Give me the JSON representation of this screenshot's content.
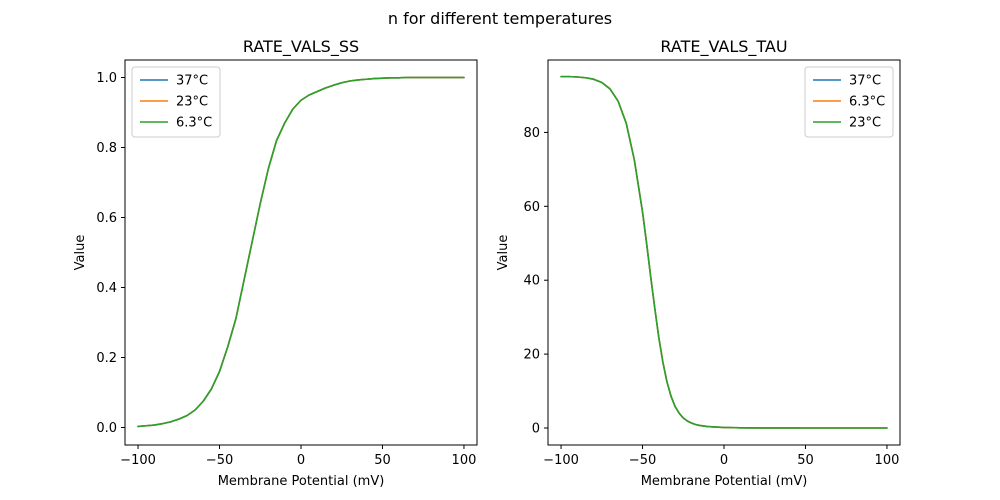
{
  "figure": {
    "suptitle": "n for different temperatures"
  },
  "chart_data": [
    {
      "type": "line",
      "title": "RATE_VALS_SS",
      "xlabel": "Membrane Potential (mV)",
      "ylabel": "Value",
      "xlim": [
        -108,
        108
      ],
      "ylim": [
        -0.05,
        1.05
      ],
      "xticks": [
        -100,
        -50,
        0,
        50,
        100
      ],
      "yticks": [
        0.0,
        0.2,
        0.4,
        0.6,
        0.8,
        1.0
      ],
      "ytick_labels": [
        "0.0",
        "0.2",
        "0.4",
        "0.6",
        "0.8",
        "1.0"
      ],
      "legend": "top-left",
      "x": [
        -100,
        -95,
        -90,
        -85,
        -80,
        -75,
        -70,
        -65,
        -60,
        -55,
        -50,
        -45,
        -40,
        -35,
        -30,
        -25,
        -20,
        -15,
        -10,
        -5,
        0,
        5,
        10,
        15,
        20,
        25,
        30,
        35,
        40,
        45,
        50,
        55,
        60,
        65,
        70,
        75,
        80,
        85,
        90,
        95,
        100
      ],
      "series": [
        {
          "name": "37°C",
          "color": "#1f77b4",
          "values": [
            0.003,
            0.005,
            0.007,
            0.011,
            0.016,
            0.024,
            0.034,
            0.05,
            0.075,
            0.11,
            0.16,
            0.23,
            0.31,
            0.42,
            0.53,
            0.64,
            0.74,
            0.82,
            0.87,
            0.91,
            0.935,
            0.95,
            0.96,
            0.97,
            0.978,
            0.985,
            0.99,
            0.993,
            0.995,
            0.997,
            0.998,
            0.999,
            0.999,
            1.0,
            1.0,
            1.0,
            1.0,
            1.0,
            1.0,
            1.0,
            1.0
          ]
        },
        {
          "name": "23°C",
          "color": "#ff7f0e",
          "values": [
            0.003,
            0.005,
            0.007,
            0.011,
            0.016,
            0.024,
            0.034,
            0.05,
            0.075,
            0.11,
            0.16,
            0.23,
            0.31,
            0.42,
            0.53,
            0.64,
            0.74,
            0.82,
            0.87,
            0.91,
            0.935,
            0.95,
            0.96,
            0.97,
            0.978,
            0.985,
            0.99,
            0.993,
            0.995,
            0.997,
            0.998,
            0.999,
            0.999,
            1.0,
            1.0,
            1.0,
            1.0,
            1.0,
            1.0,
            1.0,
            1.0
          ]
        },
        {
          "name": "6.3°C",
          "color": "#2ca02c",
          "values": [
            0.003,
            0.005,
            0.007,
            0.011,
            0.016,
            0.024,
            0.034,
            0.05,
            0.075,
            0.11,
            0.16,
            0.23,
            0.31,
            0.42,
            0.53,
            0.64,
            0.74,
            0.82,
            0.87,
            0.91,
            0.935,
            0.95,
            0.96,
            0.97,
            0.978,
            0.985,
            0.99,
            0.993,
            0.995,
            0.997,
            0.998,
            0.999,
            0.999,
            1.0,
            1.0,
            1.0,
            1.0,
            1.0,
            1.0,
            1.0,
            1.0
          ]
        }
      ]
    },
    {
      "type": "line",
      "title": "RATE_VALS_TAU",
      "xlabel": "Membrane Potential (mV)",
      "ylabel": "Value",
      "xlim": [
        -108,
        108
      ],
      "ylim": [
        -4.6,
        99.6
      ],
      "xticks": [
        -100,
        -50,
        0,
        50,
        100
      ],
      "yticks": [
        0,
        20,
        40,
        60,
        80
      ],
      "ytick_labels": [
        "0",
        "20",
        "40",
        "60",
        "80"
      ],
      "legend": "top-right",
      "x": [
        -100,
        -95,
        -90,
        -85,
        -80,
        -75,
        -70,
        -65,
        -60,
        -55,
        -50,
        -47.5,
        -45,
        -42.5,
        -40,
        -37.5,
        -35,
        -32.5,
        -30,
        -27.5,
        -25,
        -22.5,
        -20,
        -17.5,
        -15,
        -10,
        -5,
        0,
        5,
        10,
        20,
        30,
        40,
        50,
        60,
        70,
        80,
        90,
        100
      ],
      "series": [
        {
          "name": "37°C",
          "color": "#1f77b4",
          "values": [
            95.1,
            95.1,
            95.0,
            94.8,
            94.4,
            93.5,
            91.8,
            88.5,
            82.5,
            72.5,
            58.5,
            50.0,
            41.0,
            32.5,
            24.5,
            17.8,
            12.5,
            8.6,
            5.8,
            4.0,
            2.7,
            1.9,
            1.35,
            0.95,
            0.7,
            0.4,
            0.25,
            0.15,
            0.1,
            0.06,
            0.03,
            0.02,
            0.01,
            0.0,
            0.0,
            0.0,
            0.0,
            0.0,
            0.0
          ]
        },
        {
          "name": "6.3°C",
          "color": "#ff7f0e",
          "values": [
            95.1,
            95.1,
            95.0,
            94.8,
            94.4,
            93.5,
            91.8,
            88.5,
            82.5,
            72.5,
            58.5,
            50.0,
            41.0,
            32.5,
            24.5,
            17.8,
            12.5,
            8.6,
            5.8,
            4.0,
            2.7,
            1.9,
            1.35,
            0.95,
            0.7,
            0.4,
            0.25,
            0.15,
            0.1,
            0.06,
            0.03,
            0.02,
            0.01,
            0.0,
            0.0,
            0.0,
            0.0,
            0.0,
            0.0
          ]
        },
        {
          "name": "23°C",
          "color": "#2ca02c",
          "values": [
            95.1,
            95.1,
            95.0,
            94.8,
            94.4,
            93.5,
            91.8,
            88.5,
            82.5,
            72.5,
            58.5,
            50.0,
            41.0,
            32.5,
            24.5,
            17.8,
            12.5,
            8.6,
            5.8,
            4.0,
            2.7,
            1.9,
            1.35,
            0.95,
            0.7,
            0.4,
            0.25,
            0.15,
            0.1,
            0.06,
            0.03,
            0.02,
            0.01,
            0.0,
            0.0,
            0.0,
            0.0,
            0.0,
            0.0
          ]
        }
      ]
    }
  ]
}
